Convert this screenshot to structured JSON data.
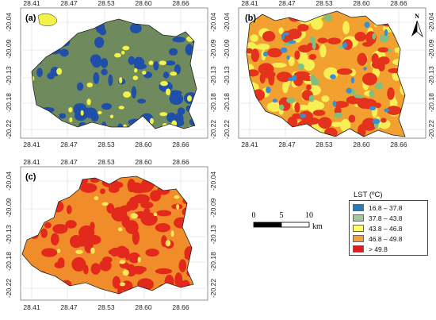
{
  "panels": [
    {
      "label": "(a)",
      "theme": "a"
    },
    {
      "label": "(b)",
      "theme": "b"
    },
    {
      "label": "(c)",
      "theme": "c"
    }
  ],
  "axes": {
    "x_ticks": [
      "28.41",
      "28.47",
      "28.53",
      "28.60",
      "28.66"
    ],
    "y_ticks": [
      "-20.04",
      "-20.09",
      "-20.13",
      "-20.18",
      "-20.22"
    ]
  },
  "north_arrow": {
    "label": "N"
  },
  "legend": {
    "title": "LST (ºC)",
    "items": [
      {
        "label": "16.8 – 37.8",
        "color": "#2b7bb9"
      },
      {
        "label": "37.8 – 43.8",
        "color": "#a3c7a1"
      },
      {
        "label": "43.8 – 46.8",
        "color": "#ffff66"
      },
      {
        "label": "46.8 – 49.8",
        "color": "#f5a13a"
      },
      {
        "label": "> 49.8",
        "color": "#e31a1c"
      }
    ]
  },
  "scale_bar": {
    "labels": [
      "0",
      "5",
      "10"
    ],
    "unit": "km"
  },
  "palette": {
    "a_base": "#6f8a5c",
    "a_blue": "#1f4fa8",
    "a_yellow": "#f2f24a",
    "b_base": "#f2a130",
    "b_red": "#e4321c",
    "b_yellow": "#f7ef54",
    "b_blue": "#3a8fd0",
    "b_green": "#7fbf7f",
    "c_base": "#f08c2a",
    "c_red": "#e3281c",
    "c_yellow": "#f6e85a"
  }
}
